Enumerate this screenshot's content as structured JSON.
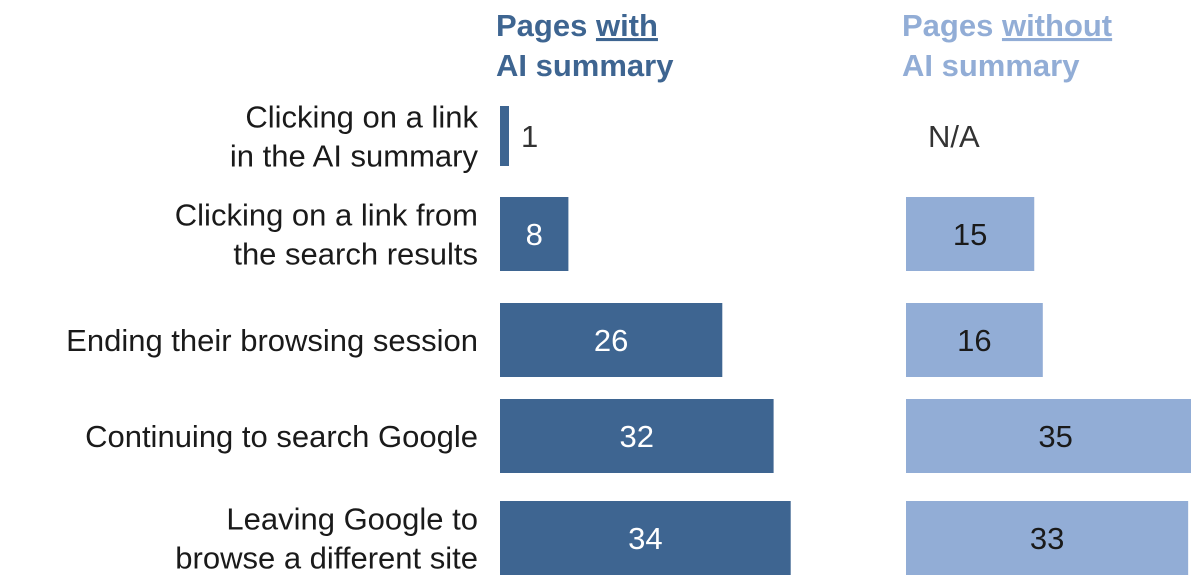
{
  "chart_data": {
    "type": "bar",
    "categories": [
      [
        "Clicking on a link",
        "in the AI summary"
      ],
      [
        "Clicking on a link from",
        "the search results"
      ],
      [
        "Ending their browsing session"
      ],
      [
        "Continuing to search Google"
      ],
      [
        "Leaving Google to",
        "browse a different site"
      ]
    ],
    "panels": [
      {
        "header_lines": [
          [
            {
              "text": "Pages ",
              "underline": false
            },
            {
              "text": "with",
              "underline": true
            }
          ],
          [
            {
              "text": "AI summary",
              "underline": false
            }
          ]
        ],
        "color": "#3e6591",
        "label_color": "#ffffff",
        "values": [
          1,
          8,
          26,
          32,
          34
        ],
        "labels": [
          "1",
          "8",
          "26",
          "32",
          "34"
        ]
      },
      {
        "header_lines": [
          [
            {
              "text": "Pages ",
              "underline": false
            },
            {
              "text": "without",
              "underline": true
            }
          ],
          [
            {
              "text": "AI summary",
              "underline": false
            }
          ]
        ],
        "color": "#92add6",
        "label_color": "#1a1a1a",
        "values": [
          null,
          15,
          16,
          35,
          33
        ],
        "labels": [
          "N/A",
          "15",
          "16",
          "35",
          "33"
        ]
      }
    ],
    "xlim": [
      0,
      35
    ],
    "grid": false,
    "legend": "none",
    "colors": {
      "category_text": "#1a1a1a",
      "outside_label": "#333333",
      "background": "#ffffff"
    }
  }
}
